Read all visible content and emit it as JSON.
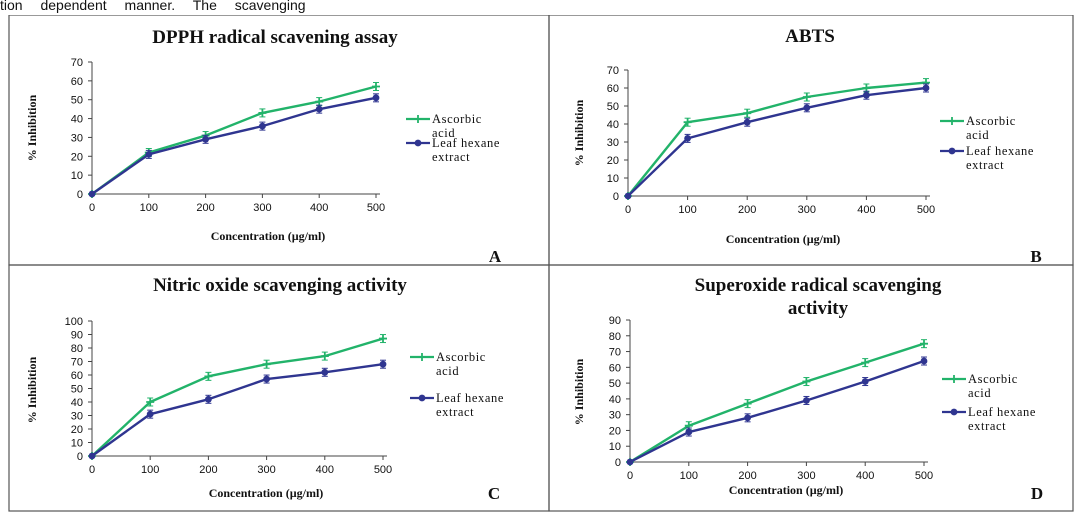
{
  "header_text": "tion dependent manner. The scavenging",
  "chart_data": [
    {
      "type": "line",
      "panel": "A",
      "title_lines": [
        "DPPH radical scavening assay"
      ],
      "xlabel": "Concentration (µg/ml)",
      "ylabel": "% Inhibition",
      "x": [
        0,
        100,
        200,
        300,
        400,
        500
      ],
      "xticks": [
        "0",
        "100",
        "200",
        "300",
        "400",
        "500"
      ],
      "ylim": [
        0,
        70
      ],
      "yticks": [
        "0",
        "10",
        "20",
        "30",
        "40",
        "50",
        "60",
        "70"
      ],
      "legend": [
        "Ascorbic acid",
        "Leaf hexane extract"
      ],
      "series": [
        {
          "name": "Ascorbic acid",
          "values": [
            0,
            22,
            31,
            43,
            49,
            57
          ],
          "color": "#22b36a",
          "marker": "plus"
        },
        {
          "name": "Leaf hexane extract",
          "values": [
            0,
            21,
            29,
            36,
            45,
            51
          ],
          "color": "#2f3590",
          "marker": "circle"
        }
      ],
      "grid": false
    },
    {
      "type": "line",
      "panel": "B",
      "title_lines": [
        "ABTS"
      ],
      "xlabel": "Concentration (µg/ml)",
      "ylabel": "% Inhibition",
      "x": [
        0,
        100,
        200,
        300,
        400,
        500
      ],
      "xticks": [
        "0",
        "100",
        "200",
        "300",
        "400",
        "500"
      ],
      "ylim": [
        0,
        70
      ],
      "yticks": [
        "0",
        "10",
        "20",
        "30",
        "40",
        "50",
        "60",
        "70"
      ],
      "legend": [
        "Ascorbic acid",
        "Leaf hexane extract"
      ],
      "series": [
        {
          "name": "Ascorbic acid",
          "values": [
            0,
            41,
            46,
            55,
            60,
            63
          ],
          "color": "#22b36a",
          "marker": "plus"
        },
        {
          "name": "Leaf hexane extract",
          "values": [
            0,
            32,
            41,
            49,
            56,
            60
          ],
          "color": "#2f3590",
          "marker": "circle"
        }
      ],
      "grid": false
    },
    {
      "type": "line",
      "panel": "C",
      "title_lines": [
        "Nitric oxide scavenging activity"
      ],
      "xlabel": "Concentration (µg/ml)",
      "ylabel": "% Inhibition",
      "x": [
        0,
        100,
        200,
        300,
        400,
        500
      ],
      "xticks": [
        "0",
        "100",
        "200",
        "300",
        "400",
        "500"
      ],
      "ylim": [
        0,
        100
      ],
      "yticks": [
        "0",
        "10",
        "20",
        "30",
        "40",
        "50",
        "60",
        "70",
        "80",
        "90",
        "100"
      ],
      "legend": [
        "Ascorbic acid",
        "Leaf hexane extract"
      ],
      "series": [
        {
          "name": "Ascorbic acid",
          "values": [
            0,
            40,
            59,
            68,
            74,
            87
          ],
          "color": "#22b36a",
          "marker": "plus"
        },
        {
          "name": "Leaf hexane extract",
          "values": [
            0,
            31,
            42,
            57,
            62,
            68
          ],
          "color": "#2f3590",
          "marker": "circle"
        }
      ],
      "grid": false
    },
    {
      "type": "line",
      "panel": "D",
      "title_lines": [
        "Superoxide radical scavenging",
        "activity"
      ],
      "xlabel": "Concentration (µg/ml)",
      "ylabel": "% Inhibition",
      "x": [
        0,
        100,
        200,
        300,
        400,
        500
      ],
      "xticks": [
        "0",
        "100",
        "200",
        "300",
        "400",
        "500"
      ],
      "ylim": [
        0,
        90
      ],
      "yticks": [
        "0",
        "10",
        "20",
        "30",
        "40",
        "50",
        "60",
        "70",
        "80",
        "90"
      ],
      "legend": [
        "Ascorbic acid",
        "Leaf hexane extract"
      ],
      "series": [
        {
          "name": "Ascorbic acid",
          "values": [
            0,
            23,
            37,
            51,
            63,
            75
          ],
          "color": "#22b36a",
          "marker": "plus"
        },
        {
          "name": "Leaf hexane extract",
          "values": [
            0,
            19,
            28,
            39,
            51,
            64
          ],
          "color": "#2f3590",
          "marker": "circle"
        }
      ],
      "grid": false
    }
  ]
}
